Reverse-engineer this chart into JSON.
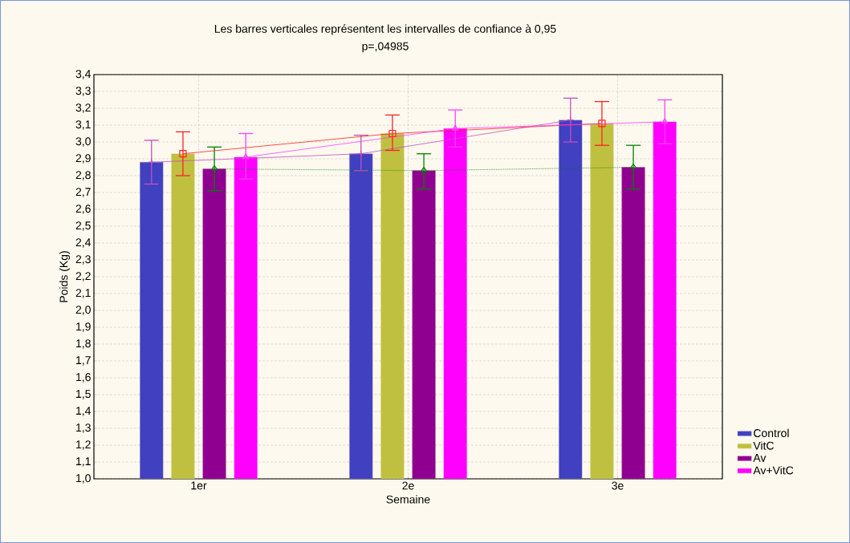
{
  "chart_data": {
    "type": "bar",
    "title": "Les barres verticales représentent les intervalles de confiance à 0,95",
    "subtitle": "p=,04985",
    "xlabel": "Semaine",
    "ylabel": "Poids (Kg)",
    "categories": [
      "1er",
      "2e",
      "3e"
    ],
    "series": [
      {
        "name": "Control",
        "color": "#4040c0",
        "values": [
          2.88,
          2.93,
          3.13
        ]
      },
      {
        "name": "VitC",
        "color": "#c0c040",
        "values": [
          2.93,
          3.05,
          3.11
        ]
      },
      {
        "name": "Av",
        "color": "#900090",
        "values": [
          2.84,
          2.83,
          2.85
        ]
      },
      {
        "name": "Av+VitC",
        "color": "#ff00ff",
        "values": [
          2.91,
          3.08,
          3.12
        ]
      },
      {
        "type": "line",
        "color": "#c050c0",
        "marker": "cross",
        "line_style": "solid",
        "values": [
          2.88,
          2.93,
          3.13
        ],
        "errors": [
          [
            2.75,
            3.01
          ],
          [
            2.83,
            3.04
          ],
          [
            3.0,
            3.26
          ]
        ]
      },
      {
        "type": "line",
        "color": "#ff2020",
        "marker": "square",
        "line_style": "solid",
        "values": [
          2.93,
          3.05,
          3.11
        ],
        "errors": [
          [
            2.8,
            3.06
          ],
          [
            2.95,
            3.16
          ],
          [
            2.98,
            3.24
          ]
        ]
      },
      {
        "type": "line",
        "color": "#008000",
        "marker": "diamond",
        "line_style": "dotted",
        "values": [
          2.84,
          2.83,
          2.85
        ],
        "errors": [
          [
            2.71,
            2.97
          ],
          [
            2.72,
            2.93
          ],
          [
            2.72,
            2.98
          ]
        ]
      },
      {
        "type": "line",
        "color": "#ff40ff",
        "marker": "triangle",
        "line_style": "solid",
        "values": [
          2.91,
          3.08,
          3.12
        ],
        "errors": [
          [
            2.78,
            3.05
          ],
          [
            2.97,
            3.19
          ],
          [
            2.99,
            3.25
          ]
        ]
      }
    ],
    "ylim": [
      1.0,
      3.4
    ],
    "yticks": [
      {
        "value": 1.0,
        "label": "1,0"
      },
      {
        "value": 1.1,
        "label": "1,1"
      },
      {
        "value": 1.2,
        "label": "1,2"
      },
      {
        "value": 1.3,
        "label": "1,3"
      },
      {
        "value": 1.4,
        "label": "1,4"
      },
      {
        "value": 1.5,
        "label": "1,5"
      },
      {
        "value": 1.6,
        "label": "1,6"
      },
      {
        "value": 1.7,
        "label": "1,7"
      },
      {
        "value": 1.8,
        "label": "1,8"
      },
      {
        "value": 1.9,
        "label": "1,9"
      },
      {
        "value": 2.0,
        "label": "2,0"
      },
      {
        "value": 2.1,
        "label": "2,1"
      },
      {
        "value": 2.2,
        "label": "2,2"
      },
      {
        "value": 2.3,
        "label": "2,3"
      },
      {
        "value": 2.4,
        "label": "2,4"
      },
      {
        "value": 2.5,
        "label": "2,5"
      },
      {
        "value": 2.6,
        "label": "2,6"
      },
      {
        "value": 2.7,
        "label": "2,7"
      },
      {
        "value": 2.8,
        "label": "2,8"
      },
      {
        "value": 2.9,
        "label": "2,9"
      },
      {
        "value": 3.0,
        "label": "3,0"
      },
      {
        "value": 3.1,
        "label": "3,1"
      },
      {
        "value": 3.2,
        "label": "3,2"
      },
      {
        "value": 3.3,
        "label": "3,3"
      },
      {
        "value": 3.4,
        "label": "3,4"
      }
    ],
    "grid": true,
    "legend": "bottom right"
  }
}
